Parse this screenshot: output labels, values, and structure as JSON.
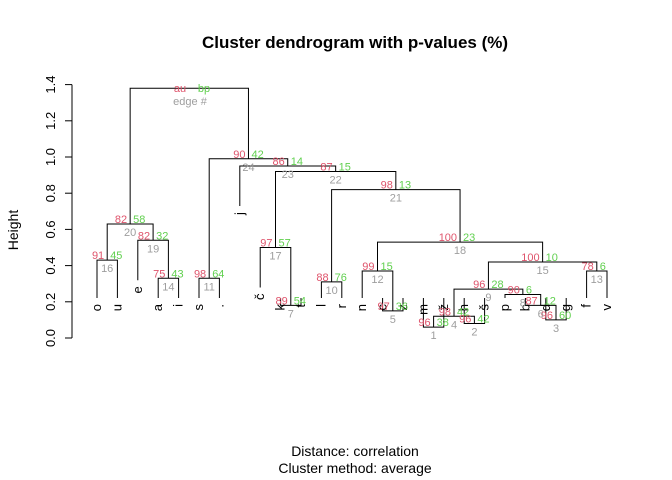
{
  "chart_data": {
    "type": "dendrogram",
    "title": "Cluster dendrogram with p-values (%)",
    "ylabel": "Height",
    "xlabel": "",
    "subtitle_lines": [
      "Distance:  correlation",
      "Cluster method: average"
    ],
    "y_ticks": [
      "0.0",
      "0.2",
      "0.4",
      "0.6",
      "0.8",
      "1.0",
      "1.2",
      "1.4"
    ],
    "ylim": [
      0,
      1.4
    ],
    "legend": {
      "au": "au",
      "bp": "bp",
      "edge": "edge #"
    },
    "colors": {
      "au": "#DF536B",
      "bp": "#61D04F",
      "edge": "#9E9E9E",
      "lines": "#000000"
    },
    "leaves": [
      "o",
      "u",
      "e",
      "a",
      "i",
      "s",
      ".",
      "j",
      "č",
      "k",
      "t",
      "l",
      "r",
      "n",
      "c",
      "z",
      "m",
      "ž",
      "h",
      "š",
      "p",
      "b",
      "d",
      "g",
      "f",
      "v"
    ],
    "merges": [
      {
        "id": "m1",
        "a": "m",
        "b": "ž",
        "height": 0.06
      },
      {
        "id": "m2",
        "a": "h",
        "b": "š",
        "height": 0.08
      },
      {
        "id": "m3",
        "a": "d",
        "b": "g",
        "height": 0.1
      },
      {
        "id": "m4",
        "a": "c",
        "b": "z",
        "height": 0.15
      },
      {
        "id": "m5",
        "a": "m1",
        "b": "m2",
        "height": 0.12
      },
      {
        "id": "m6",
        "a": "b",
        "b": "m3",
        "height": 0.18
      },
      {
        "id": "m7",
        "a": "k",
        "b": "t",
        "height": 0.18
      },
      {
        "id": "m8",
        "a": "p",
        "b": "m6",
        "height": 0.24
      },
      {
        "id": "m9",
        "a": "m5",
        "b": "m8",
        "height": 0.27
      },
      {
        "id": "m10",
        "a": "l",
        "b": "r",
        "height": 0.31
      },
      {
        "id": "m11",
        "a": "s",
        "b": ".",
        "height": 0.33
      },
      {
        "id": "m12",
        "a": "n",
        "b": "m4",
        "height": 0.37
      },
      {
        "id": "m13",
        "a": "f",
        "b": "v",
        "height": 0.37
      },
      {
        "id": "m14",
        "a": "a",
        "b": "i",
        "height": 0.33
      },
      {
        "id": "m15",
        "a": "m9",
        "b": "m13",
        "height": 0.42
      },
      {
        "id": "m16",
        "a": "o",
        "b": "u",
        "height": 0.43
      },
      {
        "id": "m17",
        "a": "č",
        "b": "m7",
        "height": 0.5
      },
      {
        "id": "m18",
        "a": "m12",
        "b": "m15",
        "height": 0.53
      },
      {
        "id": "m19",
        "a": "e",
        "b": "m14",
        "height": 0.54
      },
      {
        "id": "m20",
        "a": "m16",
        "b": "m19",
        "height": 0.63
      },
      {
        "id": "m21",
        "a": "m10",
        "b": "m18",
        "height": 0.82
      },
      {
        "id": "m22",
        "a": "m17",
        "b": "m21",
        "height": 0.92
      },
      {
        "id": "m23",
        "a": "j",
        "b": "m22",
        "height": 0.95
      },
      {
        "id": "m24",
        "a": "m11",
        "b": "m23",
        "height": 0.99
      },
      {
        "id": "m25",
        "a": "m20",
        "b": "m24",
        "height": 1.38
      }
    ],
    "pvalues": [
      {
        "merge": "m1",
        "au": "96",
        "bp": "38",
        "edge": "1"
      },
      {
        "merge": "m2",
        "au": "96",
        "bp": "42",
        "edge": "2"
      },
      {
        "merge": "m3",
        "au": "96",
        "bp": "60",
        "edge": "3"
      },
      {
        "merge": "m5",
        "au": "98",
        "bp": "42",
        "edge": "4"
      },
      {
        "merge": "m4",
        "au": "97",
        "bp": "36",
        "edge": "5"
      },
      {
        "merge": "m6",
        "au": "87",
        "bp": "12",
        "edge": "6"
      },
      {
        "merge": "m7",
        "au": "89",
        "bp": "54",
        "edge": "7"
      },
      {
        "merge": "m8",
        "au": "90",
        "bp": "6",
        "edge": "8"
      },
      {
        "merge": "m9",
        "au": "96",
        "bp": "28",
        "edge": "9"
      },
      {
        "merge": "m10",
        "au": "88",
        "bp": "76",
        "edge": "10"
      },
      {
        "merge": "m11",
        "au": "98",
        "bp": "64",
        "edge": "11"
      },
      {
        "merge": "m12",
        "au": "99",
        "bp": "15",
        "edge": "12"
      },
      {
        "merge": "m13",
        "au": "78",
        "bp": "6",
        "edge": "13"
      },
      {
        "merge": "m14",
        "au": "75",
        "bp": "43",
        "edge": "14"
      },
      {
        "merge": "m15",
        "au": "100",
        "bp": "10",
        "edge": "15"
      },
      {
        "merge": "m16",
        "au": "91",
        "bp": "45",
        "edge": "16"
      },
      {
        "merge": "m17",
        "au": "97",
        "bp": "57",
        "edge": "17"
      },
      {
        "merge": "m18",
        "au": "100",
        "bp": "23",
        "edge": "18"
      },
      {
        "merge": "m19",
        "au": "82",
        "bp": "32",
        "edge": "19"
      },
      {
        "merge": "m20",
        "au": "82",
        "bp": "58",
        "edge": "20"
      },
      {
        "merge": "m21",
        "au": "98",
        "bp": "13",
        "edge": "21"
      },
      {
        "merge": "m22",
        "au": "87",
        "bp": "15",
        "edge": "22"
      },
      {
        "merge": "m23",
        "au": "86",
        "bp": "14",
        "edge": "23"
      },
      {
        "merge": "m24",
        "au": "90",
        "bp": "42",
        "edge": "24"
      }
    ]
  }
}
